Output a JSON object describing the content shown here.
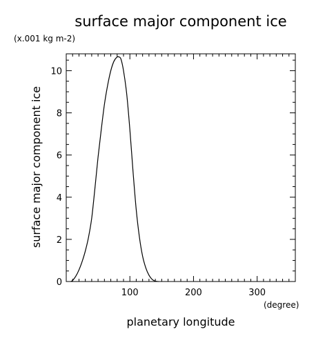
{
  "chart_data": {
    "type": "line",
    "title": "surface major component ice",
    "units_label": "(x.001 kg m-2)",
    "ylabel": "surface major component ice",
    "xlabel": "planetary longitude",
    "x_units_label": "(degree)",
    "xlim": [
      0,
      360
    ],
    "ylim": [
      0,
      10.8
    ],
    "x_ticks": [
      100,
      200,
      300
    ],
    "x_tick_labels": [
      "100",
      "200",
      "300"
    ],
    "y_ticks": [
      0,
      2,
      4,
      6,
      8,
      10
    ],
    "y_tick_labels": [
      "0",
      "2",
      "4",
      "6",
      "8",
      "10"
    ],
    "grid": false,
    "series": [
      {
        "color": "#000000",
        "x": [
          7,
          10,
          15,
          20,
          25,
          30,
          35,
          40,
          45,
          50,
          55,
          60,
          65,
          70,
          75,
          80,
          83,
          86,
          90,
          95,
          100,
          105,
          110,
          115,
          120,
          125,
          130,
          135,
          140,
          145
        ],
        "y": [
          0,
          0.05,
          0.25,
          0.55,
          0.95,
          1.45,
          2.1,
          3.0,
          4.4,
          5.9,
          7.2,
          8.4,
          9.3,
          10.0,
          10.45,
          10.65,
          10.65,
          10.55,
          10.0,
          8.9,
          7.2,
          5.2,
          3.4,
          2.1,
          1.2,
          0.65,
          0.3,
          0.1,
          0.02,
          0
        ]
      }
    ]
  }
}
